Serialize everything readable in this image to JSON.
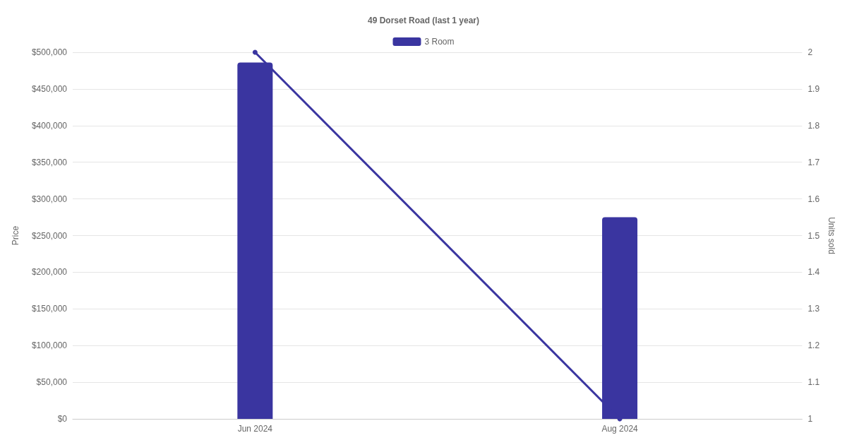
{
  "chart_data": {
    "type": "bar",
    "title": "49 Dorset Road (last 1 year)",
    "ylabel": "Price",
    "y2label": "Units sold",
    "categories": [
      "Jun 2024",
      "Aug 2024"
    ],
    "series": [
      {
        "name": "3 Room",
        "color": "#3a35a0",
        "values": [
          486000,
          275000
        ]
      },
      {
        "type": "line",
        "axis": "y2",
        "color": "#3a35a0",
        "values": [
          2,
          1
        ]
      }
    ],
    "ylim": [
      0,
      500000
    ],
    "yticks": [
      {
        "value": 0,
        "label": "$0"
      },
      {
        "value": 50000,
        "label": "$50,000"
      },
      {
        "value": 100000,
        "label": "$100,000"
      },
      {
        "value": 150000,
        "label": "$150,000"
      },
      {
        "value": 200000,
        "label": "$200,000"
      },
      {
        "value": 250000,
        "label": "$250,000"
      },
      {
        "value": 300000,
        "label": "$300,000"
      },
      {
        "value": 350000,
        "label": "$350,000"
      },
      {
        "value": 400000,
        "label": "$400,000"
      },
      {
        "value": 450000,
        "label": "$450,000"
      },
      {
        "value": 500000,
        "label": "$500,000"
      }
    ],
    "y2lim": [
      1,
      2
    ],
    "y2ticks": [
      1,
      1.1,
      1.2,
      1.3,
      1.4,
      1.5,
      1.6,
      1.7,
      1.8,
      1.9,
      2
    ],
    "grid": "y",
    "legend": "top",
    "marker": "circle"
  }
}
